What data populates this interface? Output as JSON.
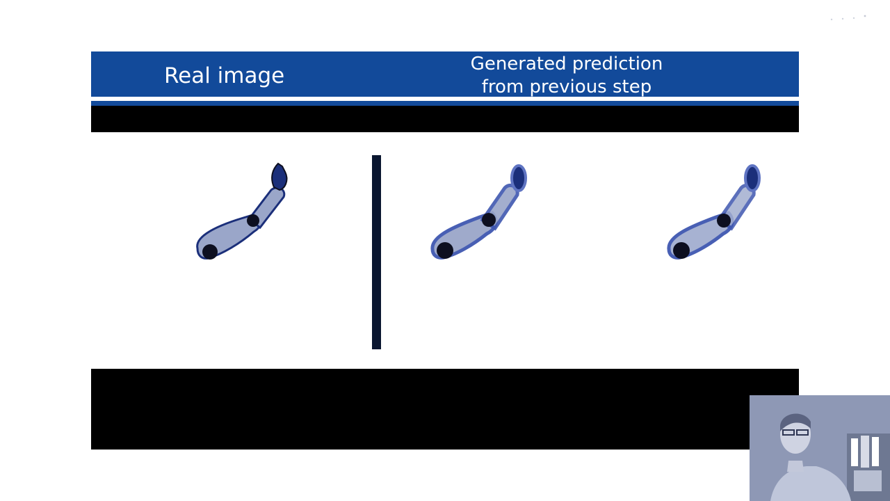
{
  "header": {
    "left_label": "Real image",
    "right_label_line1": "Generated prediction",
    "right_label_line2": "from previous step"
  },
  "colors": {
    "header_blue": "#124a9a",
    "arm_fill": "#9aa6c9",
    "arm_outline": "#1b2f7a",
    "joint": "#0d0f20",
    "divider": "#0a1630"
  },
  "panels": [
    {
      "name": "real-arm"
    },
    {
      "name": "prediction-arm-1"
    },
    {
      "name": "prediction-arm-2"
    }
  ]
}
